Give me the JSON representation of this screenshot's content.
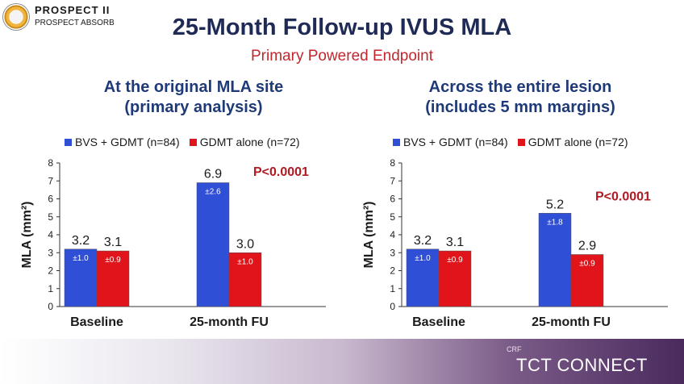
{
  "logo": {
    "line1": "PROSPECT II",
    "line2": "PROSPECT ABSORB"
  },
  "title": "25-Month Follow-up IVUS MLA",
  "subtitle": "Primary Powered Endpoint",
  "colors": {
    "bvs": "#2f4fd6",
    "gdmt": "#e0141a",
    "pvalue": "#b01a22",
    "title": "#1f2a55"
  },
  "footer": {
    "crf": "CRF",
    "brand": "TCT CONNECT"
  },
  "chart_data": [
    {
      "type": "bar",
      "title_lines": [
        "At the original MLA site",
        "(primary analysis)"
      ],
      "ylabel": "MLA (mm²)",
      "ylim": [
        0,
        8
      ],
      "yticks": [
        0,
        1,
        2,
        3,
        4,
        5,
        6,
        7,
        8
      ],
      "categories": [
        "Baseline",
        "25-month FU"
      ],
      "series": [
        {
          "name": "BVS + GDMT (n=84)",
          "values": [
            3.2,
            6.9
          ],
          "labels": [
            "3.2",
            "6.9"
          ],
          "sd": [
            "±1.0",
            "±2.6"
          ]
        },
        {
          "name": "GDMT alone (n=72)",
          "values": [
            3.1,
            3.0
          ],
          "labels": [
            "3.1",
            "3.0"
          ],
          "sd": [
            "±0.9",
            "±1.0"
          ]
        }
      ],
      "pvalue": "P<0.0001"
    },
    {
      "type": "bar",
      "title_lines": [
        "Across the entire lesion",
        "(includes 5 mm margins)"
      ],
      "ylabel": "MLA (mm²)",
      "ylim": [
        0,
        8
      ],
      "yticks": [
        0,
        1,
        2,
        3,
        4,
        5,
        6,
        7,
        8
      ],
      "categories": [
        "Baseline",
        "25-month FU"
      ],
      "series": [
        {
          "name": "BVS + GDMT (n=84)",
          "values": [
            3.2,
            5.2
          ],
          "labels": [
            "3.2",
            "5.2"
          ],
          "sd": [
            "±1.0",
            "±1.8"
          ]
        },
        {
          "name": "GDMT alone (n=72)",
          "values": [
            3.1,
            2.9
          ],
          "labels": [
            "3.1",
            "2.9"
          ],
          "sd": [
            "±0.9",
            "±0.9"
          ]
        }
      ],
      "pvalue": "P<0.0001"
    }
  ]
}
